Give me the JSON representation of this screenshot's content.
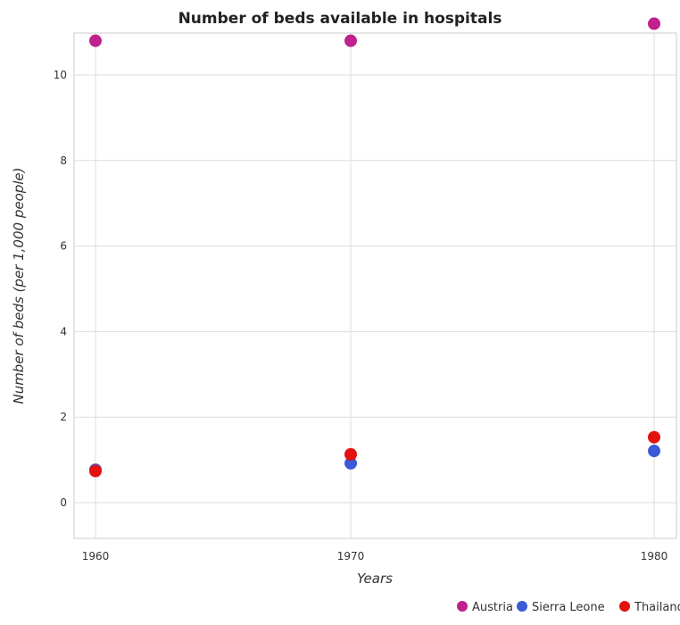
{
  "chart_data": {
    "type": "scatter",
    "title": "Number of beds available in hospitals",
    "xlabel": "Years",
    "ylabel": "Number of beds (per 1,000 people)",
    "categories": [
      "1960",
      "1970",
      "1980"
    ],
    "y_ticks": [
      "0",
      "2",
      "4",
      "6",
      "8",
      "10"
    ],
    "ylim": [
      0,
      11.67
    ],
    "grid": "on",
    "legend": "bottom-right",
    "series": [
      {
        "name": "Austria",
        "color": "#c0218c",
        "values": [
          10.8,
          10.8,
          11.2
        ]
      },
      {
        "name": "Sierra Leone",
        "color": "#3a5ad8",
        "values": [
          0.77,
          0.92,
          1.21
        ]
      },
      {
        "name": "Thailand",
        "color": "#e2120f",
        "values": [
          0.74,
          1.13,
          1.53
        ]
      }
    ]
  }
}
